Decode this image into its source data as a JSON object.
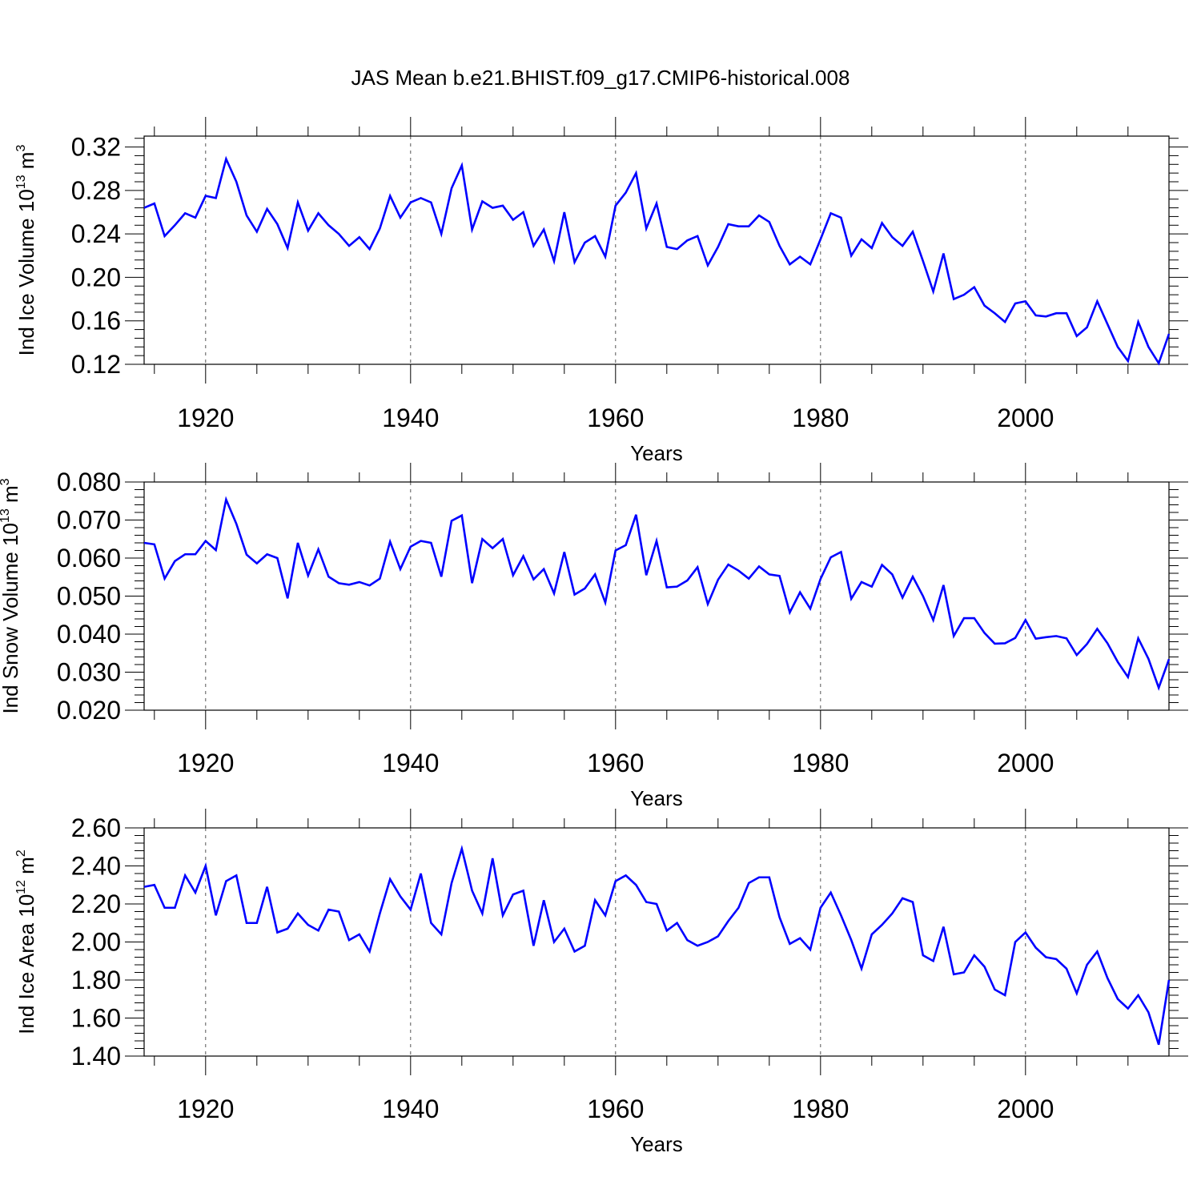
{
  "page": {
    "title": "JAS Mean b.e21.BHIST.f09_g17.CMIP6-historical.008"
  },
  "chart_data": [
    {
      "type": "line",
      "ylabel": {
        "main": "Ind Ice Volume 10",
        "exp": "13",
        "unit": " m",
        "unit_exp": "3"
      },
      "xlabel": "Years",
      "xlim": [
        1914,
        2014
      ],
      "ylim": [
        0.12,
        0.33
      ],
      "yticks": [
        0.12,
        0.16,
        0.2,
        0.24,
        0.28,
        0.32
      ],
      "ytick_labels": [
        "0.12",
        "0.16",
        "0.20",
        "0.24",
        "0.28",
        "0.32"
      ],
      "xticks": [
        1920,
        1940,
        1960,
        1980,
        2000
      ],
      "xtick_labels": [
        "1920",
        "1940",
        "1960",
        "1980",
        "2000"
      ],
      "line_color": "#0000ff",
      "grid": "vertical dashed at major x ticks",
      "series": [
        {
          "x_start": 1914,
          "values": [
            0.264,
            0.268,
            0.238,
            0.248,
            0.259,
            0.255,
            0.275,
            0.273,
            0.309,
            0.288,
            0.257,
            0.242,
            0.263,
            0.249,
            0.227,
            0.269,
            0.243,
            0.259,
            0.248,
            0.24,
            0.229,
            0.237,
            0.226,
            0.245,
            0.275,
            0.255,
            0.269,
            0.273,
            0.269,
            0.24,
            0.282,
            0.303,
            0.244,
            0.27,
            0.264,
            0.266,
            0.253,
            0.26,
            0.229,
            0.244,
            0.215,
            0.26,
            0.214,
            0.232,
            0.238,
            0.219,
            0.266,
            0.278,
            0.296,
            0.245,
            0.268,
            0.228,
            0.226,
            0.234,
            0.238,
            0.211,
            0.228,
            0.249,
            0.247,
            0.247,
            0.257,
            0.251,
            0.229,
            0.212,
            0.219,
            0.212,
            0.235,
            0.259,
            0.255,
            0.22,
            0.235,
            0.227,
            0.25,
            0.237,
            0.229,
            0.242,
            0.215,
            0.187,
            0.222,
            0.18,
            0.184,
            0.191,
            0.174,
            0.167,
            0.159,
            0.176,
            0.178,
            0.165,
            0.164,
            0.167,
            0.167,
            0.146,
            0.154,
            0.178,
            0.157,
            0.136,
            0.123,
            0.159,
            0.136,
            0.121,
            0.148
          ]
        }
      ]
    },
    {
      "type": "line",
      "ylabel": {
        "main": "Ind Snow Volume 10",
        "exp": "13",
        "unit": " m",
        "unit_exp": "3"
      },
      "xlabel": "Years",
      "xlim": [
        1914,
        2014
      ],
      "ylim": [
        0.02,
        0.08
      ],
      "yticks": [
        0.02,
        0.03,
        0.04,
        0.05,
        0.06,
        0.07,
        0.08
      ],
      "ytick_labels": [
        "0.020",
        "0.030",
        "0.040",
        "0.050",
        "0.060",
        "0.070",
        "0.080"
      ],
      "xticks": [
        1920,
        1940,
        1960,
        1980,
        2000
      ],
      "xtick_labels": [
        "1920",
        "1940",
        "1960",
        "1980",
        "2000"
      ],
      "line_color": "#0000ff",
      "grid": "vertical dashed at major x ticks",
      "series": [
        {
          "x_start": 1914,
          "values": [
            0.064,
            0.0636,
            0.0546,
            0.0592,
            0.061,
            0.061,
            0.0645,
            0.0621,
            0.0754,
            0.069,
            0.0609,
            0.0586,
            0.061,
            0.06,
            0.0494,
            0.064,
            0.0554,
            0.0623,
            0.0551,
            0.0534,
            0.053,
            0.0537,
            0.0528,
            0.0546,
            0.0643,
            0.0571,
            0.063,
            0.0645,
            0.064,
            0.0551,
            0.0698,
            0.0712,
            0.0534,
            0.065,
            0.0626,
            0.065,
            0.0555,
            0.0605,
            0.0544,
            0.0571,
            0.0507,
            0.0616,
            0.0504,
            0.052,
            0.0557,
            0.0483,
            0.062,
            0.0634,
            0.0714,
            0.0555,
            0.0645,
            0.0523,
            0.0525,
            0.0541,
            0.0576,
            0.0479,
            0.0543,
            0.0583,
            0.0567,
            0.0546,
            0.0578,
            0.0557,
            0.0553,
            0.0457,
            0.051,
            0.0467,
            0.0545,
            0.0602,
            0.0616,
            0.0493,
            0.0537,
            0.0525,
            0.0582,
            0.0557,
            0.0496,
            0.0551,
            0.05,
            0.0437,
            0.0529,
            0.0395,
            0.0442,
            0.0442,
            0.0403,
            0.0375,
            0.0376,
            0.039,
            0.0437,
            0.0388,
            0.0392,
            0.0395,
            0.0389,
            0.0345,
            0.0374,
            0.0414,
            0.0376,
            0.0327,
            0.0287,
            0.0389,
            0.0335,
            0.0259,
            0.0334
          ]
        }
      ]
    },
    {
      "type": "line",
      "ylabel": {
        "main": "Ind Ice Area 10",
        "exp": "12",
        "unit": " m",
        "unit_exp": "2"
      },
      "xlabel": "Years",
      "xlim": [
        1914,
        2014
      ],
      "ylim": [
        1.4,
        2.6
      ],
      "yticks": [
        1.4,
        1.6,
        1.8,
        2.0,
        2.2,
        2.4,
        2.6
      ],
      "ytick_labels": [
        "1.40",
        "1.60",
        "1.80",
        "2.00",
        "2.20",
        "2.40",
        "2.60"
      ],
      "xticks": [
        1920,
        1940,
        1960,
        1980,
        2000
      ],
      "xtick_labels": [
        "1920",
        "1940",
        "1960",
        "1980",
        "2000"
      ],
      "line_color": "#0000ff",
      "grid": "vertical dashed at major x ticks",
      "series": [
        {
          "x_start": 1914,
          "values": [
            2.29,
            2.3,
            2.18,
            2.18,
            2.35,
            2.26,
            2.4,
            2.14,
            2.32,
            2.35,
            2.1,
            2.1,
            2.29,
            2.05,
            2.07,
            2.15,
            2.09,
            2.06,
            2.17,
            2.16,
            2.01,
            2.04,
            1.95,
            2.15,
            2.33,
            2.24,
            2.17,
            2.36,
            2.1,
            2.04,
            2.31,
            2.49,
            2.27,
            2.15,
            2.44,
            2.14,
            2.25,
            2.27,
            1.98,
            2.22,
            2.0,
            2.07,
            1.95,
            1.98,
            2.22,
            2.14,
            2.32,
            2.35,
            2.3,
            2.21,
            2.2,
            2.06,
            2.1,
            2.01,
            1.98,
            2.0,
            2.03,
            2.11,
            2.18,
            2.31,
            2.34,
            2.34,
            2.13,
            1.99,
            2.02,
            1.96,
            2.18,
            2.26,
            2.14,
            2.01,
            1.86,
            2.04,
            2.09,
            2.15,
            2.23,
            2.21,
            1.93,
            1.9,
            2.08,
            1.83,
            1.84,
            1.93,
            1.87,
            1.75,
            1.72,
            2.0,
            2.05,
            1.97,
            1.92,
            1.91,
            1.86,
            1.73,
            1.88,
            1.95,
            1.81,
            1.7,
            1.65,
            1.72,
            1.63,
            1.46,
            1.8
          ]
        }
      ]
    }
  ]
}
